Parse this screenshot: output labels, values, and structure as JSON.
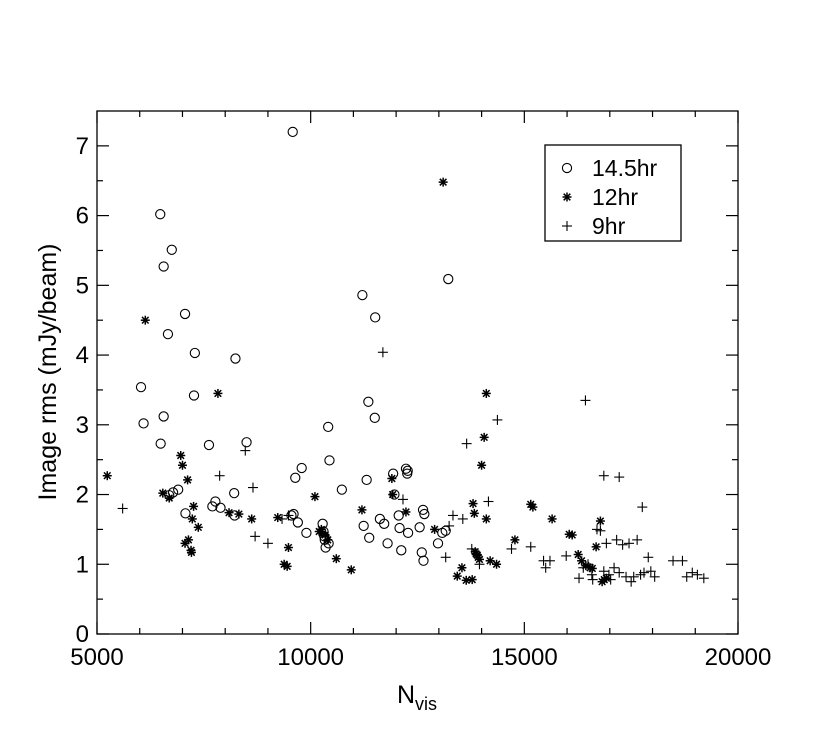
{
  "chart_data": {
    "type": "scatter",
    "title": "",
    "xlabel": "N",
    "xlabel_subscript": "vis",
    "ylabel": "Image rms (mJy/beam)",
    "xlim": [
      5000,
      20000
    ],
    "ylim": [
      0,
      7.5
    ],
    "xticks": [
      5000,
      10000,
      15000,
      20000
    ],
    "xtick_labels": [
      "5000",
      "10000",
      "15000",
      "20000"
    ],
    "yticks": [
      0,
      1,
      2,
      3,
      4,
      5,
      6,
      7
    ],
    "ytick_labels": [
      "0",
      "1",
      "2",
      "3",
      "4",
      "5",
      "6",
      "7"
    ],
    "grid": false,
    "legend_position": "top-right",
    "series": [
      {
        "name": "14.5hr",
        "marker": "circle",
        "x": [
          9580,
          6480,
          6750,
          6560,
          7060,
          6660,
          7290,
          8240,
          6030,
          7270,
          6560,
          6090,
          8500,
          6490,
          7620,
          6900,
          6780,
          6690,
          7070,
          7770,
          7700,
          7890,
          8210,
          8220,
          11210,
          13220,
          11510,
          11350,
          11500,
          10410,
          10440,
          9790,
          9640,
          11310,
          9550,
          9600,
          9700,
          9900,
          10280,
          10300,
          10320,
          10330,
          10350,
          10420,
          10730,
          11240,
          11370,
          11620,
          11720,
          11800,
          11930,
          11960,
          12060,
          12080,
          12120,
          12230,
          12260,
          12270,
          12280,
          12630,
          12660,
          12550,
          12600,
          12640,
          12980,
          13080,
          13160
        ],
        "y": [
          7.2,
          6.02,
          5.51,
          5.27,
          4.59,
          4.3,
          4.03,
          3.95,
          3.54,
          3.42,
          3.12,
          3.02,
          2.75,
          2.73,
          2.71,
          2.07,
          2.03,
          1.99,
          1.73,
          1.9,
          1.83,
          1.81,
          2.02,
          1.7,
          4.86,
          5.09,
          4.54,
          3.33,
          3.1,
          2.97,
          2.49,
          2.38,
          2.24,
          2.21,
          1.7,
          1.72,
          1.6,
          1.45,
          1.58,
          1.47,
          1.4,
          1.35,
          1.24,
          1.3,
          2.07,
          1.55,
          1.38,
          1.65,
          1.58,
          1.3,
          2.3,
          2.0,
          1.7,
          1.52,
          1.2,
          2.37,
          2.3,
          2.34,
          1.45,
          1.78,
          1.72,
          1.53,
          1.17,
          1.05,
          1.3,
          1.45,
          1.48
        ]
      },
      {
        "name": "12hr",
        "marker": "asterisk",
        "x": [
          5240,
          6130,
          7830,
          6540,
          6690,
          6960,
          7000,
          7120,
          7260,
          7230,
          7370,
          7140,
          7060,
          7200,
          7210,
          8090,
          8320,
          8620,
          9230,
          9480,
          9380,
          9450,
          10100,
          10200,
          10250,
          10280,
          10340,
          10400,
          10600,
          10950,
          11200,
          11900,
          11920,
          12230,
          12900,
          13100,
          13430,
          13540,
          13640,
          13780,
          13800,
          13830,
          13850,
          13870,
          13900,
          13920,
          13950,
          14000,
          14060,
          14110,
          14110,
          14200,
          14350,
          14780,
          15150,
          15200,
          15650,
          16050,
          16120,
          16260,
          16340,
          16440,
          16540,
          16590,
          16680,
          16780,
          16820,
          16870,
          16920
        ],
        "y": [
          2.27,
          4.5,
          3.45,
          2.02,
          1.95,
          2.56,
          2.42,
          2.21,
          1.83,
          1.65,
          1.53,
          1.35,
          1.3,
          1.2,
          1.17,
          1.74,
          1.72,
          1.65,
          1.67,
          1.24,
          1.0,
          0.97,
          1.97,
          1.47,
          1.5,
          1.44,
          1.42,
          1.35,
          1.08,
          0.92,
          1.78,
          2.23,
          2.0,
          1.75,
          1.5,
          6.48,
          0.83,
          0.95,
          0.77,
          0.78,
          1.87,
          1.73,
          1.18,
          1.15,
          1.13,
          1.1,
          1.07,
          2.42,
          2.82,
          3.45,
          1.65,
          1.05,
          1.0,
          1.35,
          1.86,
          1.82,
          1.65,
          1.43,
          1.42,
          1.14,
          1.05,
          0.98,
          0.95,
          0.94,
          1.25,
          1.62,
          0.75,
          0.78,
          0.8
        ]
      },
      {
        "name": "9hr",
        "marker": "plus",
        "x": [
          5600,
          7870,
          8470,
          8650,
          8700,
          9000,
          9330,
          9480,
          11690,
          12160,
          13560,
          13650,
          13770,
          13950,
          14160,
          14370,
          14700,
          15150,
          15450,
          15500,
          15600,
          15980,
          16280,
          16380,
          16430,
          16490,
          16580,
          16600,
          16700,
          16780,
          16860,
          16920,
          16980,
          17020,
          17100,
          17160,
          17220,
          17300,
          17380,
          17450,
          17500,
          17560,
          17640,
          17720,
          17800,
          17900,
          17960,
          18050,
          18480,
          18700,
          18800,
          18930,
          19050,
          19200,
          16860,
          17220,
          17760,
          13160,
          13240,
          13330
        ],
        "y": [
          1.8,
          2.27,
          2.63,
          2.1,
          1.4,
          1.3,
          1.65,
          1.7,
          4.04,
          1.93,
          1.65,
          2.73,
          1.22,
          1.0,
          1.9,
          3.07,
          1.22,
          1.25,
          1.05,
          0.95,
          1.05,
          1.12,
          0.8,
          0.95,
          3.35,
          1.0,
          0.85,
          0.78,
          1.5,
          1.48,
          0.9,
          1.3,
          0.85,
          0.78,
          0.95,
          1.35,
          0.88,
          1.28,
          0.82,
          1.3,
          0.75,
          0.82,
          1.35,
          0.85,
          0.88,
          1.1,
          0.9,
          0.82,
          1.05,
          1.05,
          0.82,
          0.88,
          0.85,
          0.8,
          2.27,
          2.25,
          1.82,
          1.1,
          1.55,
          1.7
        ]
      }
    ]
  }
}
